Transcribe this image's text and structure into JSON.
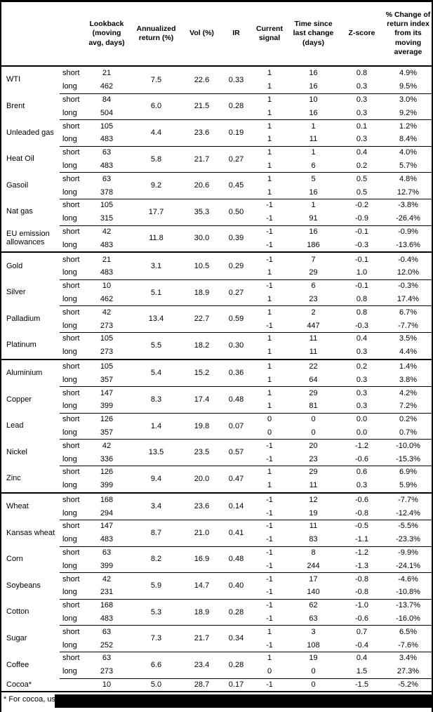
{
  "header": {
    "lookback": "Lookback (moving avg, days)",
    "annualized": "Annualized return (%)",
    "vol": "Vol (%)",
    "ir": "IR",
    "signal": "Current signal",
    "time_since": "Time since last change (days)",
    "zscore": "Z-score",
    "pct_change": "% Change of return index from its moving average"
  },
  "sections": [
    {
      "commodities": [
        {
          "name": "WTI",
          "ann": "7.5",
          "vol": "22.6",
          "ir": "0.33",
          "legs": [
            {
              "leg": "short",
              "lookback": "21",
              "signal": "1",
              "time": "16",
              "z": "0.8",
              "pct": "4.9%"
            },
            {
              "leg": "long",
              "lookback": "462",
              "signal": "1",
              "time": "16",
              "z": "0.3",
              "pct": "9.5%"
            }
          ]
        },
        {
          "name": "Brent",
          "ann": "6.0",
          "vol": "21.5",
          "ir": "0.28",
          "legs": [
            {
              "leg": "short",
              "lookback": "84",
              "signal": "1",
              "time": "10",
              "z": "0.3",
              "pct": "3.0%"
            },
            {
              "leg": "long",
              "lookback": "504",
              "signal": "1",
              "time": "16",
              "z": "0.3",
              "pct": "9.2%"
            }
          ]
        },
        {
          "name": "Unleaded gas",
          "ann": "4.4",
          "vol": "23.6",
          "ir": "0.19",
          "legs": [
            {
              "leg": "short",
              "lookback": "105",
              "signal": "1",
              "time": "1",
              "z": "0.1",
              "pct": "1.2%"
            },
            {
              "leg": "long",
              "lookback": "483",
              "signal": "1",
              "time": "11",
              "z": "0.3",
              "pct": "8.4%"
            }
          ]
        },
        {
          "name": "Heat Oil",
          "ann": "5.8",
          "vol": "21.7",
          "ir": "0.27",
          "legs": [
            {
              "leg": "short",
              "lookback": "63",
              "signal": "1",
              "time": "1",
              "z": "0.4",
              "pct": "4.0%"
            },
            {
              "leg": "long",
              "lookback": "483",
              "signal": "1",
              "time": "6",
              "z": "0.2",
              "pct": "5.7%"
            }
          ]
        },
        {
          "name": "Gasoil",
          "ann": "9.2",
          "vol": "20.6",
          "ir": "0.45",
          "legs": [
            {
              "leg": "short",
              "lookback": "63",
              "signal": "1",
              "time": "5",
              "z": "0.5",
              "pct": "4.8%"
            },
            {
              "leg": "long",
              "lookback": "378",
              "signal": "1",
              "time": "16",
              "z": "0.5",
              "pct": "12.7%"
            }
          ]
        },
        {
          "name": "Nat gas",
          "ann": "17.7",
          "vol": "35.3",
          "ir": "0.50",
          "legs": [
            {
              "leg": "short",
              "lookback": "105",
              "signal": "-1",
              "time": "1",
              "z": "-0.2",
              "pct": "-3.8%"
            },
            {
              "leg": "long",
              "lookback": "315",
              "signal": "-1",
              "time": "91",
              "z": "-0.9",
              "pct": "-26.4%"
            }
          ]
        },
        {
          "name": "EU emission allowances",
          "ann": "11.8",
          "vol": "30.0",
          "ir": "0.39",
          "legs": [
            {
              "leg": "short",
              "lookback": "42",
              "signal": "-1",
              "time": "16",
              "z": "-0.1",
              "pct": "-0.9%"
            },
            {
              "leg": "long",
              "lookback": "483",
              "signal": "-1",
              "time": "186",
              "z": "-0.3",
              "pct": "-13.6%"
            }
          ]
        }
      ]
    },
    {
      "commodities": [
        {
          "name": "Gold",
          "ann": "3.1",
          "vol": "10.5",
          "ir": "0.29",
          "legs": [
            {
              "leg": "short",
              "lookback": "21",
              "signal": "-1",
              "time": "7",
              "z": "-0.1",
              "pct": "-0.4%"
            },
            {
              "leg": "long",
              "lookback": "483",
              "signal": "1",
              "time": "29",
              "z": "1.0",
              "pct": "12.0%"
            }
          ]
        },
        {
          "name": "Silver",
          "ann": "5.1",
          "vol": "18.9",
          "ir": "0.27",
          "legs": [
            {
              "leg": "short",
              "lookback": "10",
              "signal": "-1",
              "time": "6",
              "z": "-0.1",
              "pct": "-0.3%"
            },
            {
              "leg": "long",
              "lookback": "462",
              "signal": "1",
              "time": "23",
              "z": "0.8",
              "pct": "17.4%"
            }
          ]
        },
        {
          "name": "Palladium",
          "ann": "13.4",
          "vol": "22.7",
          "ir": "0.59",
          "legs": [
            {
              "leg": "short",
              "lookback": "42",
              "signal": "1",
              "time": "2",
              "z": "0.8",
              "pct": "6.7%"
            },
            {
              "leg": "long",
              "lookback": "273",
              "signal": "-1",
              "time": "447",
              "z": "-0.3",
              "pct": "-7.7%"
            }
          ]
        },
        {
          "name": "Platinum",
          "ann": "5.5",
          "vol": "18.2",
          "ir": "0.30",
          "legs": [
            {
              "leg": "short",
              "lookback": "105",
              "signal": "1",
              "time": "11",
              "z": "0.4",
              "pct": "3.5%"
            },
            {
              "leg": "long",
              "lookback": "273",
              "signal": "1",
              "time": "11",
              "z": "0.3",
              "pct": "4.4%"
            }
          ]
        }
      ]
    },
    {
      "commodities": [
        {
          "name": "Aluminium",
          "ann": "5.4",
          "vol": "15.2",
          "ir": "0.36",
          "legs": [
            {
              "leg": "short",
              "lookback": "105",
              "signal": "1",
              "time": "22",
              "z": "0.2",
              "pct": "1.4%"
            },
            {
              "leg": "long",
              "lookback": "357",
              "signal": "1",
              "time": "64",
              "z": "0.3",
              "pct": "3.8%"
            }
          ]
        },
        {
          "name": "Copper",
          "ann": "8.3",
          "vol": "17.4",
          "ir": "0.48",
          "legs": [
            {
              "leg": "short",
              "lookback": "147",
              "signal": "1",
              "time": "29",
              "z": "0.3",
              "pct": "4.2%"
            },
            {
              "leg": "long",
              "lookback": "399",
              "signal": "1",
              "time": "81",
              "z": "0.3",
              "pct": "7.2%"
            }
          ]
        },
        {
          "name": "Lead",
          "ann": "1.4",
          "vol": "19.8",
          "ir": "0.07",
          "legs": [
            {
              "leg": "short",
              "lookback": "126",
              "signal": "0",
              "time": "0",
              "z": "0.0",
              "pct": "0.2%"
            },
            {
              "leg": "long",
              "lookback": "357",
              "signal": "0",
              "time": "0",
              "z": "0.0",
              "pct": "0.7%"
            }
          ]
        },
        {
          "name": "Nickel",
          "ann": "13.5",
          "vol": "23.5",
          "ir": "0.57",
          "legs": [
            {
              "leg": "short",
              "lookback": "42",
              "signal": "-1",
              "time": "20",
              "z": "-1.2",
              "pct": "-10.0%"
            },
            {
              "leg": "long",
              "lookback": "336",
              "signal": "-1",
              "time": "23",
              "z": "-0.6",
              "pct": "-15.3%"
            }
          ]
        },
        {
          "name": "Zinc",
          "ann": "9.4",
          "vol": "20.0",
          "ir": "0.47",
          "legs": [
            {
              "leg": "short",
              "lookback": "126",
              "signal": "1",
              "time": "29",
              "z": "0.6",
              "pct": "6.9%"
            },
            {
              "leg": "long",
              "lookback": "399",
              "signal": "1",
              "time": "11",
              "z": "0.3",
              "pct": "5.9%"
            }
          ]
        }
      ]
    },
    {
      "commodities": [
        {
          "name": "Wheat",
          "ann": "3.4",
          "vol": "23.6",
          "ir": "0.14",
          "legs": [
            {
              "leg": "short",
              "lookback": "168",
              "signal": "-1",
              "time": "12",
              "z": "-0.6",
              "pct": "-7.7%"
            },
            {
              "leg": "long",
              "lookback": "294",
              "signal": "-1",
              "time": "19",
              "z": "-0.8",
              "pct": "-12.4%"
            }
          ]
        },
        {
          "name": "Kansas wheat",
          "ann": "8.7",
          "vol": "21.0",
          "ir": "0.41",
          "legs": [
            {
              "leg": "short",
              "lookback": "147",
              "signal": "-1",
              "time": "11",
              "z": "-0.5",
              "pct": "-5.5%"
            },
            {
              "leg": "long",
              "lookback": "483",
              "signal": "-1",
              "time": "83",
              "z": "-1.1",
              "pct": "-23.3%"
            }
          ]
        },
        {
          "name": "Corn",
          "ann": "8.2",
          "vol": "16.9",
          "ir": "0.48",
          "legs": [
            {
              "leg": "short",
              "lookback": "63",
              "signal": "-1",
              "time": "8",
              "z": "-1.2",
              "pct": "-9.9%"
            },
            {
              "leg": "long",
              "lookback": "399",
              "signal": "-1",
              "time": "244",
              "z": "-1.3",
              "pct": "-24.1%"
            }
          ]
        },
        {
          "name": "Soybeans",
          "ann": "5.9",
          "vol": "14.7",
          "ir": "0.40",
          "legs": [
            {
              "leg": "short",
              "lookback": "42",
              "signal": "-1",
              "time": "17",
              "z": "-0.8",
              "pct": "-4.6%"
            },
            {
              "leg": "long",
              "lookback": "231",
              "signal": "-1",
              "time": "140",
              "z": "-0.8",
              "pct": "-10.8%"
            }
          ]
        },
        {
          "name": "Cotton",
          "ann": "5.3",
          "vol": "18.9",
          "ir": "0.28",
          "legs": [
            {
              "leg": "short",
              "lookback": "168",
              "signal": "-1",
              "time": "62",
              "z": "-1.0",
              "pct": "-13.7%"
            },
            {
              "leg": "long",
              "lookback": "483",
              "signal": "-1",
              "time": "63",
              "z": "-0.6",
              "pct": "-16.0%"
            }
          ]
        },
        {
          "name": "Sugar",
          "ann": "7.3",
          "vol": "21.7",
          "ir": "0.34",
          "legs": [
            {
              "leg": "short",
              "lookback": "63",
              "signal": "1",
              "time": "3",
              "z": "0.7",
              "pct": "6.5%"
            },
            {
              "leg": "long",
              "lookback": "252",
              "signal": "-1",
              "time": "108",
              "z": "-0.4",
              "pct": "-7.6%"
            }
          ]
        },
        {
          "name": "Coffee",
          "ann": "6.6",
          "vol": "23.4",
          "ir": "0.28",
          "legs": [
            {
              "leg": "short",
              "lookback": "63",
              "signal": "1",
              "time": "19",
              "z": "0.4",
              "pct": "3.4%"
            },
            {
              "leg": "long",
              "lookback": "273",
              "signal": "0",
              "time": "0",
              "z": "1.5",
              "pct": "27.3%"
            }
          ]
        },
        {
          "name": "Cocoa*",
          "ann": "5.0",
          "vol": "28.7",
          "ir": "0.17",
          "legs": [
            {
              "leg": "",
              "lookback": "10",
              "signal": "-1",
              "time": "0",
              "z": "-1.5",
              "pct": "-5.2%"
            }
          ]
        }
      ]
    }
  ],
  "footnote_text": "* For cocoa, uses c"
}
